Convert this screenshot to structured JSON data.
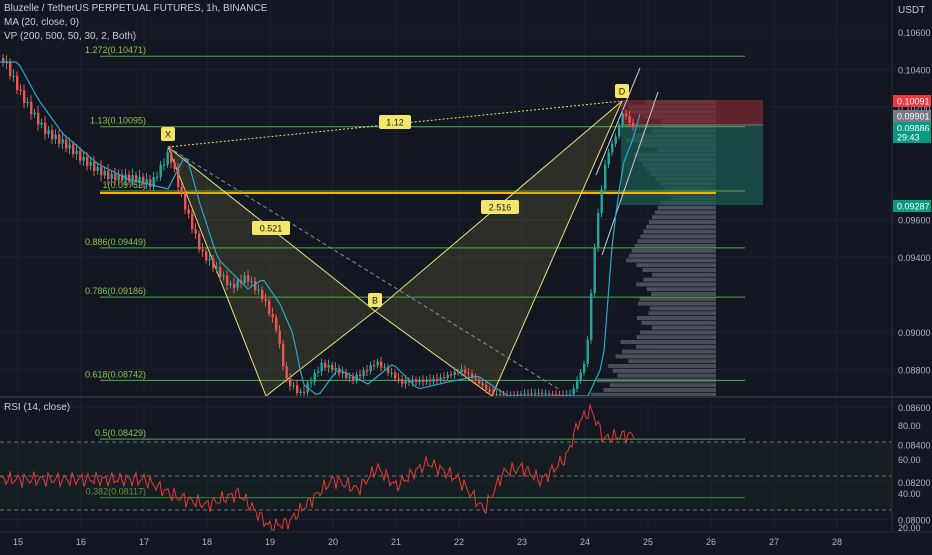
{
  "header": {
    "symbol_line": "Bluzelle / TetherUS PERPETUAL FUTURES, 1h, BINANCE",
    "ma_line": "MA (20, close, 0)",
    "vp_line": "VP (200, 500, 50, 30, 2, Both)",
    "currency": "USDT"
  },
  "rsi": {
    "label": "RSI (14, close)",
    "ticks": [
      "80.00",
      "60.00",
      "40.00",
      "20.00"
    ]
  },
  "colors": {
    "background": "#131722",
    "fib_line": "#4caf50",
    "harmonic_fill": "#8a8a3c",
    "harmonic_line": "#e8e07a",
    "ma_line": "#2aa7c9",
    "rsi_line": "#e53935",
    "candle_up": "#26a69a",
    "candle_down": "#ef5350",
    "stop_zone": "#7a2a30",
    "target_zone": "#1e5a52",
    "volume_profile": "#787b86"
  },
  "chart_data": [
    {
      "type": "candlestick",
      "x_axis_labels": [
        "15",
        "16",
        "17",
        "18",
        "19",
        "20",
        "21",
        "22",
        "23",
        "24",
        "25",
        "26",
        "27",
        "28"
      ],
      "y_axis_labels": [
        "0.10600",
        "0.10400",
        "0.10200",
        "0.09600",
        "0.09400",
        "0.09000",
        "0.08800",
        "0.08600",
        "0.08400",
        "0.08200",
        "0.08000"
      ],
      "price_tags": [
        {
          "text": "0.10091",
          "color": "#f23645"
        },
        {
          "text": "0.09901",
          "color": "#787b86"
        },
        {
          "text": "0.09886",
          "color": "#089981"
        },
        {
          "text": "29:43",
          "color": "#089981"
        },
        {
          "text": "0.09287",
          "color": "#089981"
        }
      ],
      "fib_levels": [
        {
          "label": "1.272(0.10471)",
          "ratio": 1.272,
          "price": 0.10471
        },
        {
          "label": "1.13(0.10095)",
          "ratio": 1.13,
          "price": 0.10095
        },
        {
          "label": "1(0.09752)",
          "ratio": 1,
          "price": 0.09752
        },
        {
          "label": "0.886(0.09449)",
          "ratio": 0.886,
          "price": 0.09449
        },
        {
          "label": "0.786(0.09186)",
          "ratio": 0.786,
          "price": 0.09186
        },
        {
          "label": "0.618(0.08742)",
          "ratio": 0.618,
          "price": 0.08742
        },
        {
          "label": "0.5(0.08429)",
          "ratio": 0.5,
          "price": 0.08429
        },
        {
          "label": "0.382(0.08117)",
          "ratio": 0.382,
          "price": 0.08117
        }
      ],
      "pattern_points": [
        "X",
        "B",
        "D"
      ],
      "pattern_ratios": [
        "0.521",
        "1.12",
        "2.516"
      ]
    },
    {
      "type": "line",
      "name": "RSI",
      "y_range": [
        20,
        90
      ],
      "bands": [
        70,
        50,
        30
      ],
      "values_by_day": [
        {
          "day": 17.0,
          "value": 48
        },
        {
          "day": 17.5,
          "value": 38
        },
        {
          "day": 18.0,
          "value": 33
        },
        {
          "day": 18.5,
          "value": 40
        },
        {
          "day": 19.0,
          "value": 20
        },
        {
          "day": 19.3,
          "value": 23
        },
        {
          "day": 19.6,
          "value": 34
        },
        {
          "day": 20.0,
          "value": 48
        },
        {
          "day": 20.4,
          "value": 42
        },
        {
          "day": 20.7,
          "value": 55
        },
        {
          "day": 21.0,
          "value": 44
        },
        {
          "day": 21.5,
          "value": 58
        },
        {
          "day": 22.0,
          "value": 48
        },
        {
          "day": 22.4,
          "value": 30
        },
        {
          "day": 22.7,
          "value": 52
        },
        {
          "day": 23.0,
          "value": 55
        },
        {
          "day": 23.3,
          "value": 47
        },
        {
          "day": 23.7,
          "value": 61
        },
        {
          "day": 23.9,
          "value": 82
        },
        {
          "day": 24.1,
          "value": 89
        },
        {
          "day": 24.3,
          "value": 72
        },
        {
          "day": 24.6,
          "value": 74
        }
      ]
    }
  ]
}
